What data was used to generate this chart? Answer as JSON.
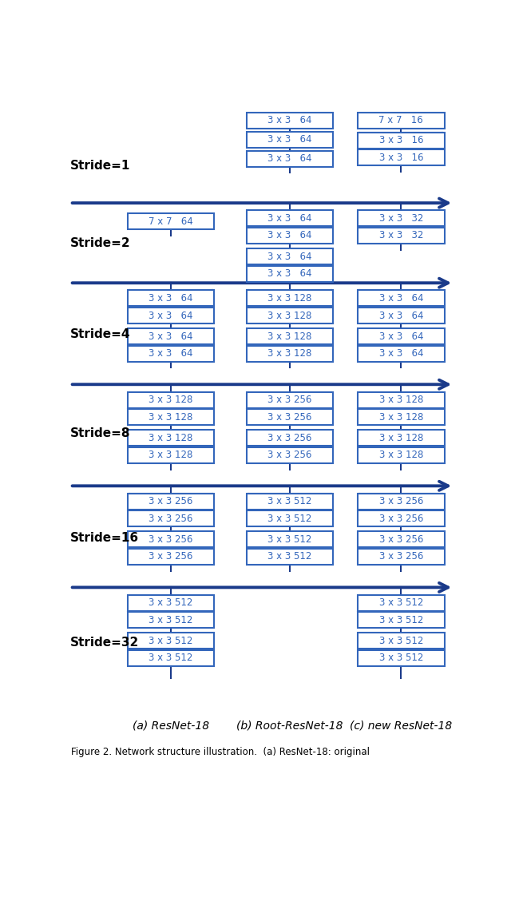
{
  "background_color": "#ffffff",
  "box_edge_color": "#3366bb",
  "box_face_color": "#ffffff",
  "text_color": "#3366bb",
  "arrow_color": "#1a3a8a",
  "strides": [
    "Stride=1",
    "Stride=2",
    "Stride=4",
    "Stride=8",
    "Stride=16",
    "Stride=32"
  ],
  "col_labels": [
    "(a) ResNet-18",
    "(b) Root-ResNet-18",
    "(c) new ResNet-18"
  ],
  "caption": "Figure 2. Network structure illustration.  (a) ResNet-18: original"
}
